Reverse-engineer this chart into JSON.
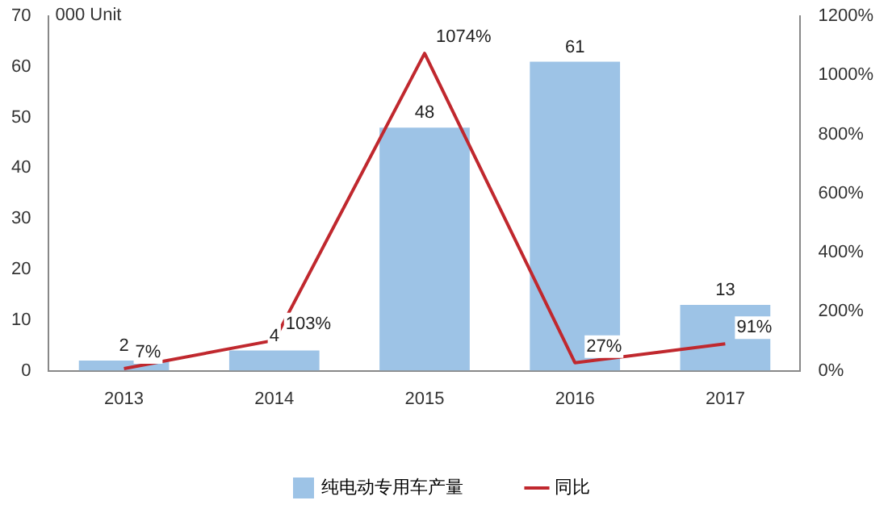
{
  "chart_data": {
    "type": "bar",
    "ylabel": "000 Unit",
    "categories": [
      "2013",
      "2014",
      "2015",
      "2016",
      "2017"
    ],
    "series": [
      {
        "name": "纯电动专用车产量",
        "color": "#9dc3e6",
        "values": [
          2,
          4,
          48,
          61,
          13
        ],
        "value_labels": [
          "2",
          "4",
          "48",
          "61",
          "13"
        ]
      },
      {
        "name": "同比",
        "type": "line",
        "axis": "y2",
        "color": "#c0282e",
        "marker": "none",
        "values": [
          7,
          103,
          1074,
          27,
          91
        ],
        "value_labels": [
          "7%",
          "103%",
          "1074%",
          "27%",
          "91%"
        ]
      }
    ],
    "ylim": [
      0,
      70
    ],
    "yticks": [
      0,
      10,
      20,
      30,
      40,
      50,
      60,
      70
    ],
    "y2lim": [
      0,
      1200
    ],
    "y2ticks": [
      {
        "value": 0,
        "label": "0%"
      },
      {
        "value": 200,
        "label": "200%"
      },
      {
        "value": 400,
        "label": "400%"
      },
      {
        "value": 600,
        "label": "600%"
      },
      {
        "value": 800,
        "label": "800%"
      },
      {
        "value": 1000,
        "label": "1000%"
      },
      {
        "value": 1200,
        "label": "1200%"
      }
    ],
    "grid": false,
    "legend": "bottom"
  }
}
